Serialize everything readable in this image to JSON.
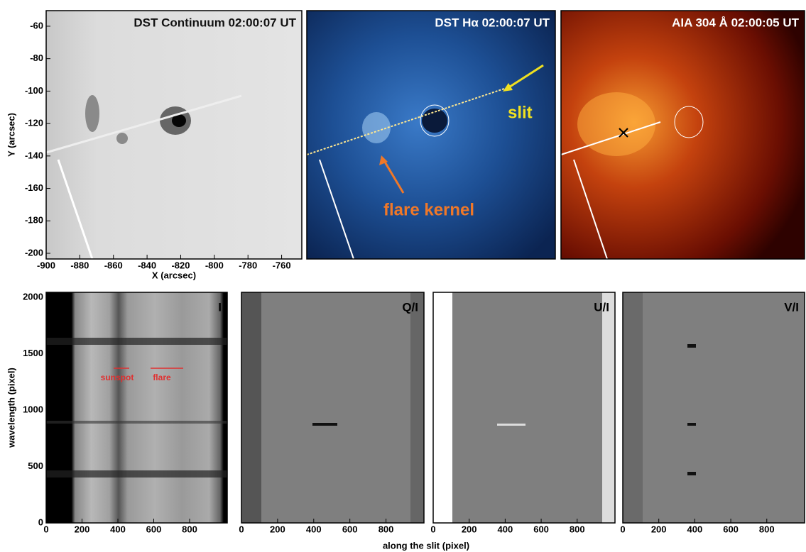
{
  "chart_data": [
    {
      "type": "image",
      "title": "DST Continuum 02:00:07 UT",
      "xlabel": "X (arcsec)",
      "ylabel": "Y (arcsec)",
      "xlim": [
        -900,
        -748
      ],
      "ylim": [
        -203.5,
        -50.4
      ],
      "xticks": [
        -900,
        -880,
        -860,
        -840,
        -820,
        -800,
        -780,
        -760
      ],
      "yticks": [
        -60,
        -80,
        -100,
        -120,
        -140,
        -160,
        -180,
        -200
      ]
    },
    {
      "type": "image",
      "title": "DST Hα 02:00:07 UT",
      "annotations": [
        "slit",
        "flare kernel"
      ]
    },
    {
      "type": "image",
      "title": "AIA 304 Å 02:00:05 UT"
    },
    {
      "type": "image",
      "title": "I",
      "ylabel": "wavelength (pixel)",
      "annotations": [
        "sunspot",
        "flare"
      ],
      "xlim": [
        0,
        1010
      ],
      "ylim": [
        0,
        2044
      ],
      "xticks": [
        0,
        200,
        400,
        600,
        800
      ],
      "yticks": [
        0,
        500,
        1000,
        1500,
        2000
      ]
    },
    {
      "type": "image",
      "title": "Q/I",
      "xlabel": "along the slit (pixel)",
      "xlim": [
        0,
        1010
      ],
      "xticks": [
        0,
        200,
        400,
        600,
        800
      ]
    },
    {
      "type": "image",
      "title": "U/I",
      "xlim": [
        0,
        1010
      ],
      "xticks": [
        0,
        200,
        400,
        600,
        800
      ]
    },
    {
      "type": "image",
      "title": "V/I",
      "xlim": [
        0,
        1010
      ],
      "xticks": [
        0,
        200,
        400,
        600,
        800
      ]
    }
  ]
}
